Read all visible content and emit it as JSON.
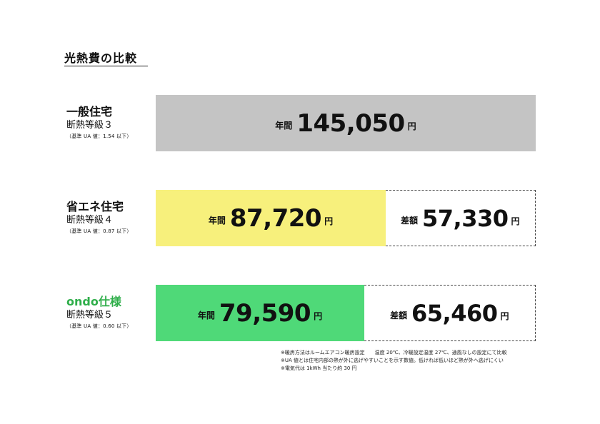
{
  "title": "光熱費の比較",
  "chart_data": {
    "type": "bar",
    "title": "光熱費の比較",
    "max": 145050,
    "period_label": "年間",
    "diff_label": "差額",
    "unit": "円",
    "rows": [
      {
        "name": "一般住宅",
        "grade": "断熱等級３",
        "ua": "（基準 UA 値：1.54 以下）",
        "value": 145050,
        "value_text": "145,050",
        "color": "#c4c4c4",
        "name_color": "#111111"
      },
      {
        "name": "省エネ住宅",
        "grade": "断熱等級４",
        "ua": "（基準 UA 値：0.87 以下）",
        "value": 87720,
        "value_text": "87,720",
        "diff": 57330,
        "diff_text": "57,330",
        "color": "#f7f07c",
        "name_color": "#111111"
      },
      {
        "name": "ondo仕様",
        "grade": "断熱等級５",
        "ua": "（基準 UA 値：0.60 以下）",
        "value": 79590,
        "value_text": "79,590",
        "diff": 65460,
        "diff_text": "65,460",
        "color": "#4fd978",
        "name_color": "#2fae4a"
      }
    ]
  },
  "notes": [
    "※暖房方法はルームエアコン暖房設定　　温度 20℃、冷暖設定温度 27℃、通風なしの設定にて比較",
    "※UA 値とは住宅内部の熱が外に逃げやすいことを示す数値。低ければ低いほど熱が外へ逃げにくい",
    "※電気代は 1kWh 当たり約 30 円"
  ]
}
